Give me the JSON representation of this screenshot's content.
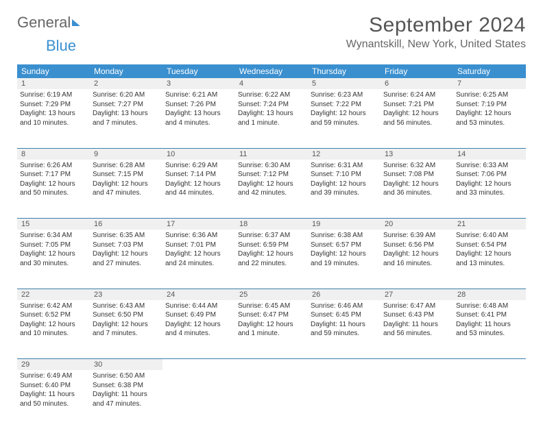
{
  "brand": {
    "part1": "General",
    "part2": "Blue"
  },
  "title": "September 2024",
  "location": "Wynantskill, New York, United States",
  "weekdays": [
    "Sunday",
    "Monday",
    "Tuesday",
    "Wednesday",
    "Thursday",
    "Friday",
    "Saturday"
  ],
  "colors": {
    "accent": "#3a8fcf",
    "daybar": "#f0f0f0",
    "rule": "#3a7fa8",
    "text": "#333333"
  },
  "weeks": [
    [
      {
        "n": "1",
        "sr": "6:19 AM",
        "ss": "7:29 PM",
        "dl": "13 hours and 10 minutes."
      },
      {
        "n": "2",
        "sr": "6:20 AM",
        "ss": "7:27 PM",
        "dl": "13 hours and 7 minutes."
      },
      {
        "n": "3",
        "sr": "6:21 AM",
        "ss": "7:26 PM",
        "dl": "13 hours and 4 minutes."
      },
      {
        "n": "4",
        "sr": "6:22 AM",
        "ss": "7:24 PM",
        "dl": "13 hours and 1 minute."
      },
      {
        "n": "5",
        "sr": "6:23 AM",
        "ss": "7:22 PM",
        "dl": "12 hours and 59 minutes."
      },
      {
        "n": "6",
        "sr": "6:24 AM",
        "ss": "7:21 PM",
        "dl": "12 hours and 56 minutes."
      },
      {
        "n": "7",
        "sr": "6:25 AM",
        "ss": "7:19 PM",
        "dl": "12 hours and 53 minutes."
      }
    ],
    [
      {
        "n": "8",
        "sr": "6:26 AM",
        "ss": "7:17 PM",
        "dl": "12 hours and 50 minutes."
      },
      {
        "n": "9",
        "sr": "6:28 AM",
        "ss": "7:15 PM",
        "dl": "12 hours and 47 minutes."
      },
      {
        "n": "10",
        "sr": "6:29 AM",
        "ss": "7:14 PM",
        "dl": "12 hours and 44 minutes."
      },
      {
        "n": "11",
        "sr": "6:30 AM",
        "ss": "7:12 PM",
        "dl": "12 hours and 42 minutes."
      },
      {
        "n": "12",
        "sr": "6:31 AM",
        "ss": "7:10 PM",
        "dl": "12 hours and 39 minutes."
      },
      {
        "n": "13",
        "sr": "6:32 AM",
        "ss": "7:08 PM",
        "dl": "12 hours and 36 minutes."
      },
      {
        "n": "14",
        "sr": "6:33 AM",
        "ss": "7:06 PM",
        "dl": "12 hours and 33 minutes."
      }
    ],
    [
      {
        "n": "15",
        "sr": "6:34 AM",
        "ss": "7:05 PM",
        "dl": "12 hours and 30 minutes."
      },
      {
        "n": "16",
        "sr": "6:35 AM",
        "ss": "7:03 PM",
        "dl": "12 hours and 27 minutes."
      },
      {
        "n": "17",
        "sr": "6:36 AM",
        "ss": "7:01 PM",
        "dl": "12 hours and 24 minutes."
      },
      {
        "n": "18",
        "sr": "6:37 AM",
        "ss": "6:59 PM",
        "dl": "12 hours and 22 minutes."
      },
      {
        "n": "19",
        "sr": "6:38 AM",
        "ss": "6:57 PM",
        "dl": "12 hours and 19 minutes."
      },
      {
        "n": "20",
        "sr": "6:39 AM",
        "ss": "6:56 PM",
        "dl": "12 hours and 16 minutes."
      },
      {
        "n": "21",
        "sr": "6:40 AM",
        "ss": "6:54 PM",
        "dl": "12 hours and 13 minutes."
      }
    ],
    [
      {
        "n": "22",
        "sr": "6:42 AM",
        "ss": "6:52 PM",
        "dl": "12 hours and 10 minutes."
      },
      {
        "n": "23",
        "sr": "6:43 AM",
        "ss": "6:50 PM",
        "dl": "12 hours and 7 minutes."
      },
      {
        "n": "24",
        "sr": "6:44 AM",
        "ss": "6:49 PM",
        "dl": "12 hours and 4 minutes."
      },
      {
        "n": "25",
        "sr": "6:45 AM",
        "ss": "6:47 PM",
        "dl": "12 hours and 1 minute."
      },
      {
        "n": "26",
        "sr": "6:46 AM",
        "ss": "6:45 PM",
        "dl": "11 hours and 59 minutes."
      },
      {
        "n": "27",
        "sr": "6:47 AM",
        "ss": "6:43 PM",
        "dl": "11 hours and 56 minutes."
      },
      {
        "n": "28",
        "sr": "6:48 AM",
        "ss": "6:41 PM",
        "dl": "11 hours and 53 minutes."
      }
    ],
    [
      {
        "n": "29",
        "sr": "6:49 AM",
        "ss": "6:40 PM",
        "dl": "11 hours and 50 minutes."
      },
      {
        "n": "30",
        "sr": "6:50 AM",
        "ss": "6:38 PM",
        "dl": "11 hours and 47 minutes."
      },
      null,
      null,
      null,
      null,
      null
    ]
  ],
  "labels": {
    "sunrise": "Sunrise: ",
    "sunset": "Sunset: ",
    "daylight": "Daylight: "
  }
}
